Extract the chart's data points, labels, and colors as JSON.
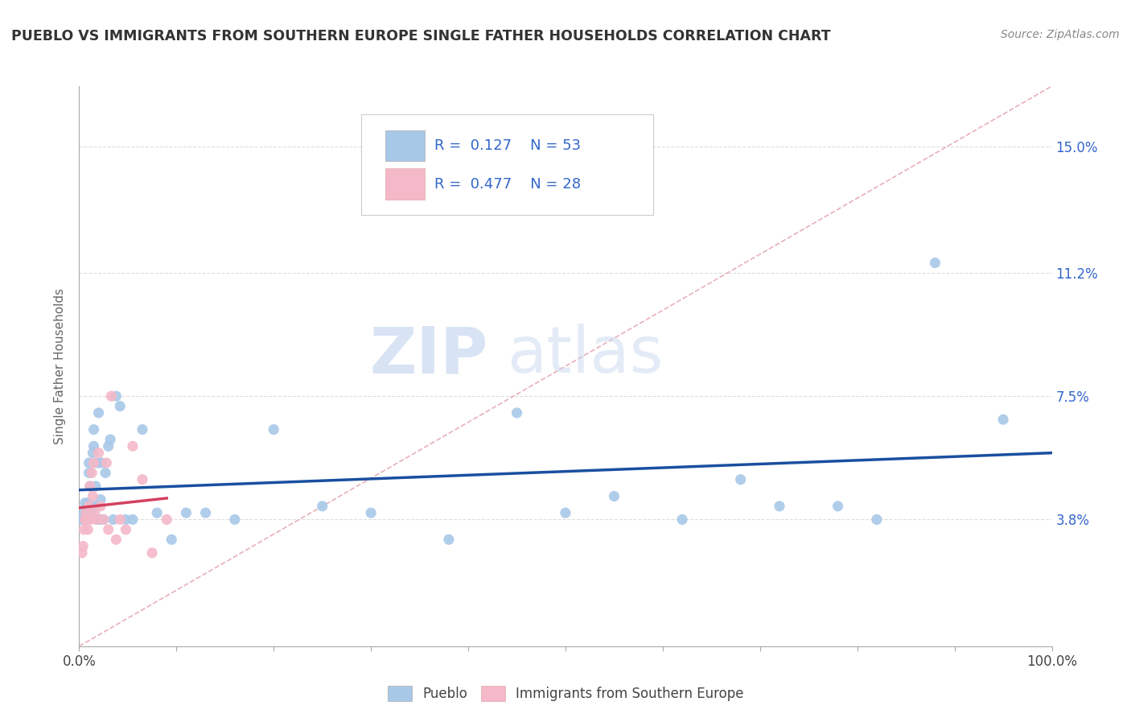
{
  "title": "PUEBLO VS IMMIGRANTS FROM SOUTHERN EUROPE SINGLE FATHER HOUSEHOLDS CORRELATION CHART",
  "source": "Source: ZipAtlas.com",
  "ylabel": "Single Father Households",
  "xlim": [
    0.0,
    1.0
  ],
  "ylim": [
    0.0,
    0.168
  ],
  "yticks": [
    0.0,
    0.038,
    0.075,
    0.112,
    0.15
  ],
  "ytick_labels": [
    "",
    "3.8%",
    "7.5%",
    "11.2%",
    "15.0%"
  ],
  "blue_color": "#a8c8e8",
  "pink_color": "#f4b8c8",
  "trendline_blue": "#1a4fa0",
  "trendline_pink": "#d44060",
  "diag_color": "#e8b0b8",
  "R_blue": 0.127,
  "N_blue": 53,
  "R_pink": 0.477,
  "N_pink": 28,
  "blue_scatter_x": [
    0.003,
    0.004,
    0.005,
    0.006,
    0.007,
    0.008,
    0.008,
    0.009,
    0.01,
    0.01,
    0.011,
    0.012,
    0.013,
    0.014,
    0.015,
    0.015,
    0.016,
    0.017,
    0.018,
    0.019,
    0.02,
    0.021,
    0.022,
    0.023,
    0.025,
    0.027,
    0.03,
    0.032,
    0.035,
    0.038,
    0.042,
    0.048,
    0.055,
    0.065,
    0.08,
    0.095,
    0.11,
    0.13,
    0.16,
    0.2,
    0.25,
    0.3,
    0.38,
    0.45,
    0.5,
    0.55,
    0.62,
    0.68,
    0.72,
    0.78,
    0.82,
    0.88,
    0.95
  ],
  "blue_scatter_y": [
    0.038,
    0.038,
    0.04,
    0.043,
    0.041,
    0.042,
    0.038,
    0.043,
    0.052,
    0.055,
    0.048,
    0.04,
    0.042,
    0.058,
    0.06,
    0.065,
    0.042,
    0.048,
    0.038,
    0.055,
    0.07,
    0.038,
    0.044,
    0.055,
    0.038,
    0.052,
    0.06,
    0.062,
    0.038,
    0.075,
    0.072,
    0.038,
    0.038,
    0.065,
    0.04,
    0.032,
    0.04,
    0.04,
    0.038,
    0.065,
    0.042,
    0.04,
    0.032,
    0.07,
    0.04,
    0.045,
    0.038,
    0.05,
    0.042,
    0.042,
    0.038,
    0.115,
    0.068
  ],
  "pink_scatter_x": [
    0.003,
    0.004,
    0.005,
    0.006,
    0.007,
    0.008,
    0.009,
    0.01,
    0.011,
    0.012,
    0.013,
    0.014,
    0.015,
    0.016,
    0.018,
    0.02,
    0.022,
    0.025,
    0.028,
    0.03,
    0.033,
    0.038,
    0.042,
    0.048,
    0.055,
    0.065,
    0.075,
    0.09
  ],
  "pink_scatter_y": [
    0.028,
    0.03,
    0.035,
    0.038,
    0.04,
    0.038,
    0.035,
    0.042,
    0.048,
    0.038,
    0.052,
    0.045,
    0.055,
    0.04,
    0.038,
    0.058,
    0.042,
    0.038,
    0.055,
    0.035,
    0.075,
    0.032,
    0.038,
    0.035,
    0.06,
    0.05,
    0.028,
    0.038
  ],
  "watermark_zip": "ZIP",
  "watermark_atlas": "atlas",
  "legend_blue_label": "Pueblo",
  "legend_pink_label": "Immigrants from Southern Europe",
  "background_color": "#ffffff",
  "grid_color": "#dddddd"
}
